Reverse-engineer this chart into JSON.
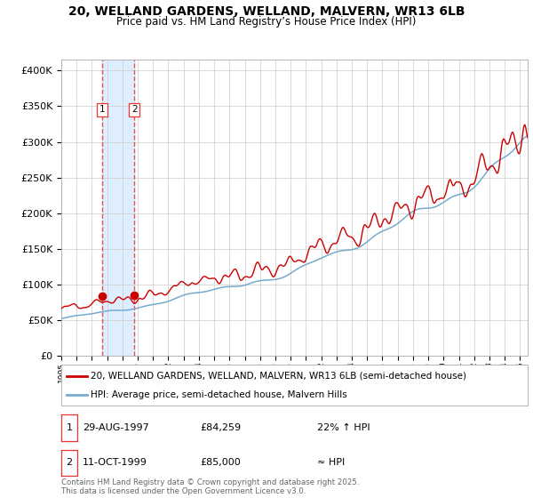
{
  "title": "20, WELLAND GARDENS, WELLAND, MALVERN, WR13 6LB",
  "subtitle": "Price paid vs. HM Land Registry’s House Price Index (HPI)",
  "legend_line1": "20, WELLAND GARDENS, WELLAND, MALVERN, WR13 6LB (semi-detached house)",
  "legend_line2": "HPI: Average price, semi-detached house, Malvern Hills",
  "footer": "Contains HM Land Registry data © Crown copyright and database right 2025.\nThis data is licensed under the Open Government Licence v3.0.",
  "transaction1": {
    "label": "1",
    "date": "29-AUG-1997",
    "price": "£84,259",
    "hpi": "22% ↑ HPI",
    "year": 1997.66
  },
  "transaction2": {
    "label": "2",
    "date": "11-OCT-1999",
    "price": "£85,000",
    "hpi": "≈ HPI",
    "year": 1999.78
  },
  "t1_price": 84259,
  "t2_price": 85000,
  "ylim_max": 400000,
  "xlim_start": 1995.0,
  "xlim_end": 2025.5,
  "line_color_red": "#cc0000",
  "line_color_blue": "#77aacc",
  "shade_color": "#ddeeff",
  "vline_color": "#ee3333",
  "background_color": "#ffffff",
  "grid_color": "#cccccc"
}
